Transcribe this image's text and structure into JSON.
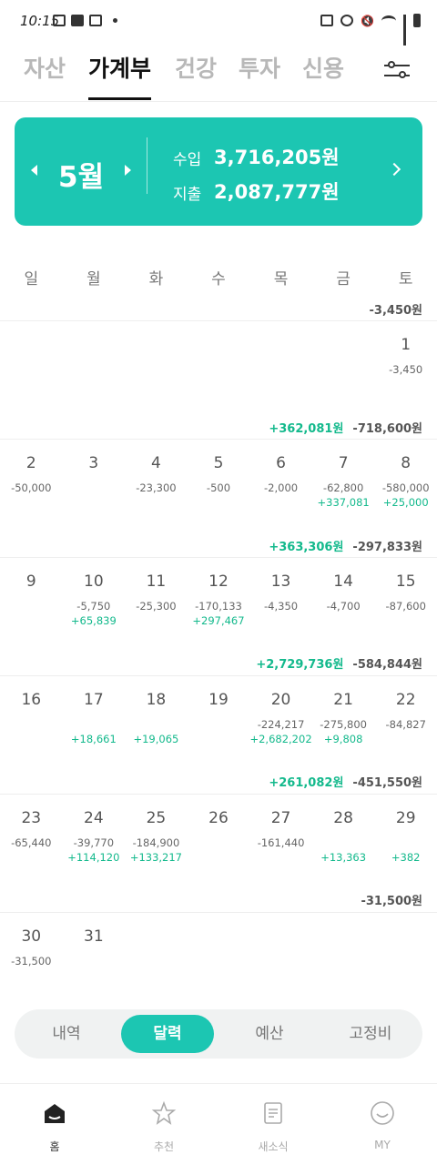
{
  "status": {
    "time": "10:15"
  },
  "tabs": [
    "자산",
    "가계부",
    "건강",
    "투자",
    "신용"
  ],
  "card": {
    "month": "5월",
    "income_label": "수입",
    "income": "3,716,205원",
    "expense_label": "지출",
    "expense": "2,087,777원"
  },
  "weekdays": [
    "일",
    "월",
    "화",
    "수",
    "목",
    "금",
    "토"
  ],
  "weeks": [
    {
      "summary": {
        "income": "",
        "expense": "-3,450원"
      },
      "days": [
        {
          "n": "",
          "e": "",
          "i": ""
        },
        {
          "n": "",
          "e": "",
          "i": ""
        },
        {
          "n": "",
          "e": "",
          "i": ""
        },
        {
          "n": "",
          "e": "",
          "i": ""
        },
        {
          "n": "",
          "e": "",
          "i": ""
        },
        {
          "n": "",
          "e": "",
          "i": ""
        },
        {
          "n": "1",
          "e": "-3,450",
          "i": ""
        }
      ]
    },
    {
      "summary": {
        "income": "+362,081원",
        "expense": "-718,600원"
      },
      "days": [
        {
          "n": "2",
          "e": "-50,000",
          "i": ""
        },
        {
          "n": "3",
          "e": "",
          "i": ""
        },
        {
          "n": "4",
          "e": "-23,300",
          "i": ""
        },
        {
          "n": "5",
          "e": "-500",
          "i": ""
        },
        {
          "n": "6",
          "e": "-2,000",
          "i": ""
        },
        {
          "n": "7",
          "e": "-62,800",
          "i": "+337,081"
        },
        {
          "n": "8",
          "e": "-580,000",
          "i": "+25,000"
        }
      ]
    },
    {
      "summary": {
        "income": "+363,306원",
        "expense": "-297,833원"
      },
      "days": [
        {
          "n": "9",
          "e": "",
          "i": ""
        },
        {
          "n": "10",
          "e": "-5,750",
          "i": "+65,839"
        },
        {
          "n": "11",
          "e": "-25,300",
          "i": ""
        },
        {
          "n": "12",
          "e": "-170,133",
          "i": "+297,467"
        },
        {
          "n": "13",
          "e": "-4,350",
          "i": ""
        },
        {
          "n": "14",
          "e": "-4,700",
          "i": ""
        },
        {
          "n": "15",
          "e": "-87,600",
          "i": ""
        }
      ]
    },
    {
      "summary": {
        "income": "+2,729,736원",
        "expense": "-584,844원"
      },
      "days": [
        {
          "n": "16",
          "e": "",
          "i": ""
        },
        {
          "n": "17",
          "e": "",
          "i": "+18,661"
        },
        {
          "n": "18",
          "e": "",
          "i": "+19,065"
        },
        {
          "n": "19",
          "e": "",
          "i": ""
        },
        {
          "n": "20",
          "e": "-224,217",
          "i": "+2,682,202"
        },
        {
          "n": "21",
          "e": "-275,800",
          "i": "+9,808"
        },
        {
          "n": "22",
          "e": "-84,827",
          "i": ""
        }
      ]
    },
    {
      "summary": {
        "income": "+261,082원",
        "expense": "-451,550원"
      },
      "days": [
        {
          "n": "23",
          "e": "-65,440",
          "i": ""
        },
        {
          "n": "24",
          "e": "-39,770",
          "i": "+114,120"
        },
        {
          "n": "25",
          "e": "-184,900",
          "i": "+133,217"
        },
        {
          "n": "26",
          "e": "",
          "i": ""
        },
        {
          "n": "27",
          "e": "-161,440",
          "i": ""
        },
        {
          "n": "28",
          "e": "",
          "i": "+13,363"
        },
        {
          "n": "29",
          "e": "",
          "i": "+382"
        }
      ]
    },
    {
      "summary": {
        "income": "",
        "expense": "-31,500원"
      },
      "days": [
        {
          "n": "30",
          "e": "-31,500",
          "i": ""
        },
        {
          "n": "31",
          "e": "",
          "i": ""
        },
        {
          "n": "",
          "e": "",
          "i": ""
        },
        {
          "n": "",
          "e": "",
          "i": ""
        },
        {
          "n": "",
          "e": "",
          "i": ""
        },
        {
          "n": "",
          "e": "",
          "i": ""
        },
        {
          "n": "",
          "e": "",
          "i": ""
        }
      ]
    }
  ],
  "segments": [
    "내역",
    "달력",
    "예산",
    "고정비"
  ],
  "nav": [
    {
      "label": "홈",
      "icon": "home-icon"
    },
    {
      "label": "추천",
      "icon": "star-icon"
    },
    {
      "label": "새소식",
      "icon": "news-icon"
    },
    {
      "label": "MY",
      "icon": "smile-icon"
    }
  ],
  "colors": {
    "accent": "#1cc6b2",
    "income": "#13b98c"
  }
}
